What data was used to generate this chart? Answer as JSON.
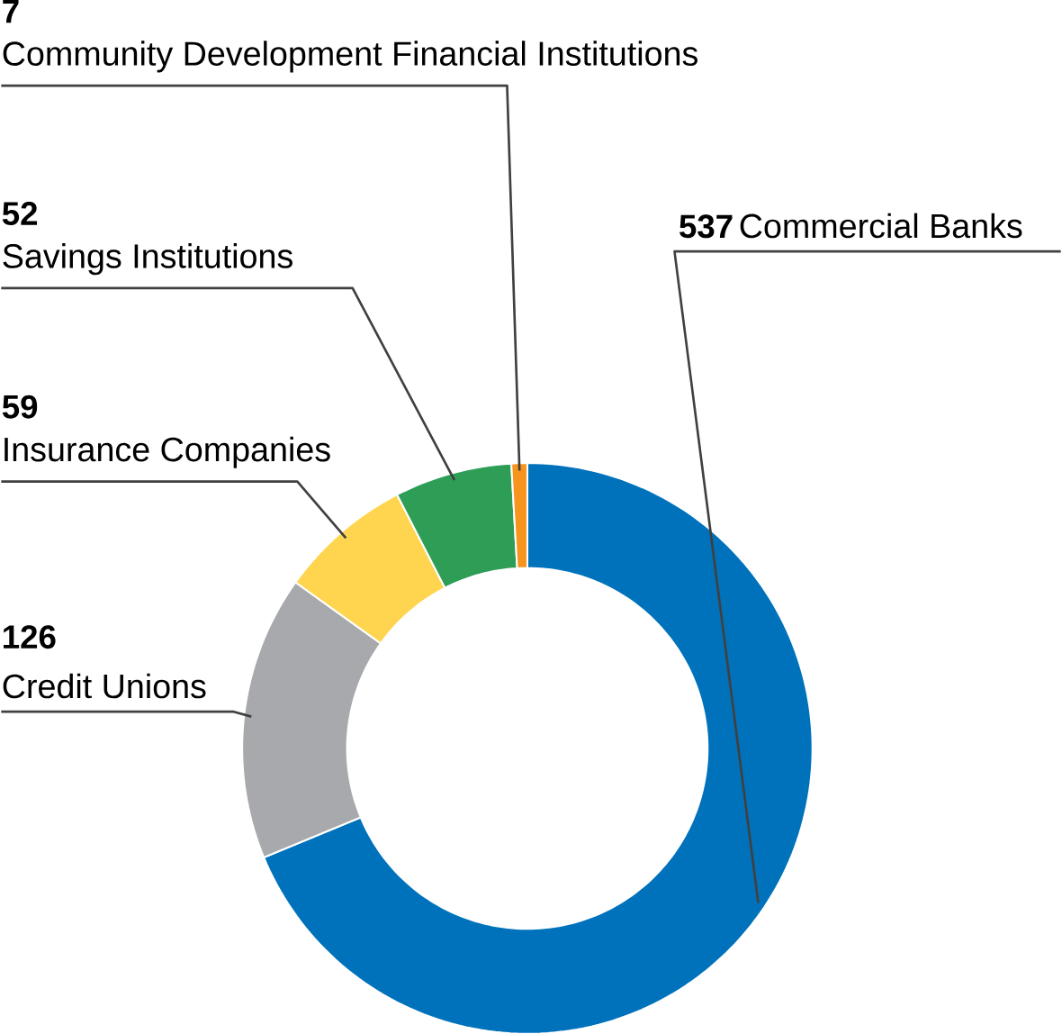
{
  "chart_data": {
    "type": "donut",
    "categories": [
      "Commercial Banks",
      "Credit Unions",
      "Insurance Companies",
      "Savings Institutions",
      "Community Development Financial Institutions"
    ],
    "values": [
      537,
      126,
      59,
      52,
      7
    ],
    "colors": [
      "#0072bc",
      "#a7a9ac",
      "#ffd54f",
      "#2e9e57",
      "#f7941d"
    ],
    "data_labels": true
  }
}
